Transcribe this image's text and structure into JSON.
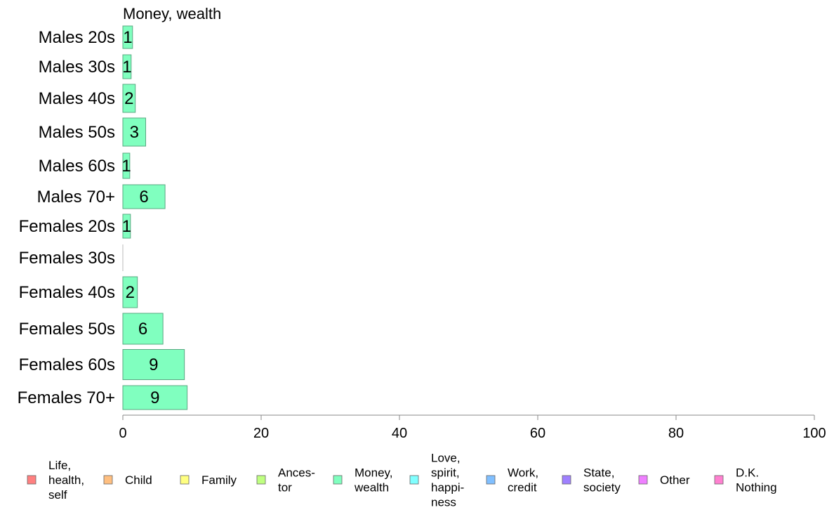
{
  "chart_data": {
    "type": "bar",
    "orientation": "horizontal",
    "title": "Money, wealth",
    "xlabel": "",
    "ylabel": "",
    "xlim": [
      0,
      100
    ],
    "xticks": [
      0,
      20,
      40,
      60,
      80,
      100
    ],
    "grid": false,
    "categories": [
      "Males 20s",
      "Males 30s",
      "Males 40s",
      "Males 50s",
      "Males 60s",
      "Males 70+",
      "Females 20s",
      "Females 30s",
      "Females 40s",
      "Females 50s",
      "Females 60s",
      "Females 70+"
    ],
    "values": [
      1.4,
      1.2,
      1.8,
      3.3,
      1.0,
      6.1,
      1.1,
      0,
      2.1,
      5.8,
      8.9,
      9.3
    ],
    "labels": [
      "1",
      "1",
      "2",
      "3",
      "1",
      "6",
      "1",
      "",
      "2",
      "6",
      "9",
      "9"
    ],
    "bar_color": "#80ffbf",
    "bar_stroke": "#5aa882",
    "legend_position": "bottom",
    "legend": [
      {
        "lines": [
          "Life,",
          "health,",
          "self"
        ],
        "color": "#ff8080"
      },
      {
        "lines": [
          "Child"
        ],
        "color": "#ffbf80"
      },
      {
        "lines": [
          "Family"
        ],
        "color": "#ffff80"
      },
      {
        "lines": [
          "Ances-",
          "tor"
        ],
        "color": "#bfff80"
      },
      {
        "lines": [
          "Money,",
          "wealth"
        ],
        "color": "#80ffbf"
      },
      {
        "lines": [
          "Love,",
          "spirit,",
          "happi-",
          "ness"
        ],
        "color": "#80ffff"
      },
      {
        "lines": [
          "Work,",
          "credit"
        ],
        "color": "#80bfff"
      },
      {
        "lines": [
          "State,",
          "society"
        ],
        "color": "#9f80ff"
      },
      {
        "lines": [
          "Other"
        ],
        "color": "#ef80ff"
      },
      {
        "lines": [
          "D.K.",
          "Nothing"
        ],
        "color": "#ff80d0"
      }
    ]
  }
}
